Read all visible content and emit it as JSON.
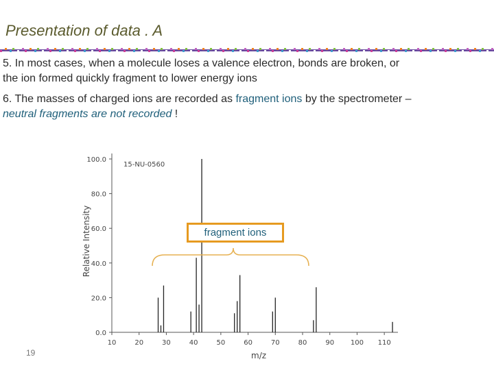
{
  "slide": {
    "title": "Presentation of data   . A",
    "page_number": "19"
  },
  "bullets": {
    "b5_text": "5. In most cases, when a molecule loses a valence electron, bonds are broken, or the ion formed quickly fragment to lower energy ions",
    "b6_prefix": "6.   The masses of charged ions are recorded as ",
    "b6_highlight": "fragment ions",
    "b6_mid": " by the spectrometer – ",
    "b6_emph": "neutral fragments are not recorded",
    "b6_suffix": " !"
  },
  "callout_label": "fragment ions",
  "colors": {
    "title": "#5b5b2e",
    "accent_blue": "#1f5f7a",
    "callout_border": "#e69a20",
    "brace": "#e6b050"
  },
  "chart_data": {
    "type": "bar",
    "sample_id": "15-NU-0560",
    "xlabel": "m/z",
    "ylabel": "Relative Intensity",
    "xlim": [
      10,
      115
    ],
    "ylim": [
      0,
      100
    ],
    "x_ticks": [
      10,
      20,
      30,
      40,
      50,
      60,
      70,
      80,
      90,
      100,
      110
    ],
    "y_ticks": [
      0,
      20,
      40,
      60,
      80,
      100
    ],
    "peaks": [
      {
        "mz": 27,
        "intensity": 20
      },
      {
        "mz": 28,
        "intensity": 4
      },
      {
        "mz": 29,
        "intensity": 27
      },
      {
        "mz": 39,
        "intensity": 12
      },
      {
        "mz": 41,
        "intensity": 43
      },
      {
        "mz": 42,
        "intensity": 16
      },
      {
        "mz": 43,
        "intensity": 100
      },
      {
        "mz": 55,
        "intensity": 11
      },
      {
        "mz": 56,
        "intensity": 18
      },
      {
        "mz": 57,
        "intensity": 33
      },
      {
        "mz": 69,
        "intensity": 12
      },
      {
        "mz": 70,
        "intensity": 20
      },
      {
        "mz": 84,
        "intensity": 7
      },
      {
        "mz": 85,
        "intensity": 26
      },
      {
        "mz": 113,
        "intensity": 6
      }
    ]
  }
}
